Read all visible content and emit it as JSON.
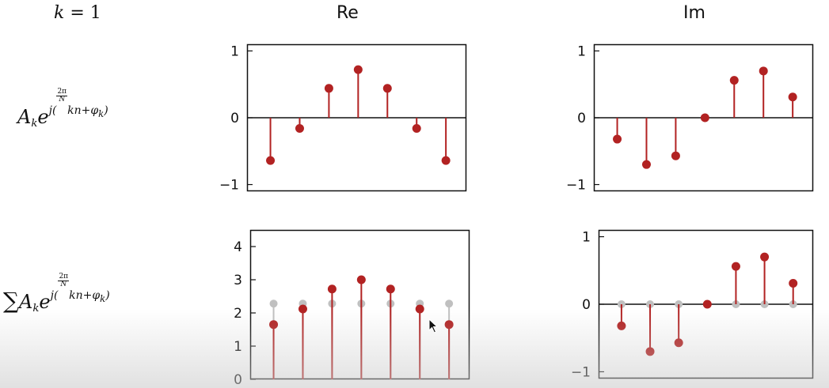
{
  "header": {
    "k_var": "k",
    "k_eq": " = 1",
    "col_re": "Re",
    "col_im": "Im"
  },
  "rows": {
    "term": {
      "A": "A",
      "sub_k": "k",
      "e": "e",
      "j": "j(",
      "frac_num": "2π",
      "frac_den": "N",
      "rest": "kn+φ",
      "sub_k2": "k",
      "close": ")"
    },
    "sum": {
      "sigma": "∑",
      "A": "A",
      "sub_k": "k",
      "e": "e",
      "j": "j(",
      "frac_num": "2π",
      "frac_den": "N",
      "rest": "kn+φ",
      "sub_k2": "k",
      "close": ")"
    }
  },
  "colors": {
    "stem": "#b22222",
    "ghost": "#c0c0c0",
    "axis": "#111111"
  },
  "chart_data": [
    {
      "id": "top-re",
      "type": "stem",
      "n": 7,
      "values": [
        -0.64,
        -0.16,
        0.44,
        0.72,
        0.44,
        -0.16,
        -0.64
      ],
      "ylim": [
        -1.1,
        1.1
      ],
      "yticks": [
        {
          "v": 1,
          "label": "1"
        },
        {
          "v": 0,
          "label": "0"
        },
        {
          "v": -1,
          "label": "−1"
        }
      ],
      "baseline": 0
    },
    {
      "id": "top-im",
      "type": "stem",
      "n": 7,
      "values": [
        -0.32,
        -0.7,
        -0.57,
        0.0,
        0.56,
        0.7,
        0.31
      ],
      "ylim": [
        -1.1,
        1.1
      ],
      "yticks": [
        {
          "v": 1,
          "label": "1"
        },
        {
          "v": 0,
          "label": "0"
        },
        {
          "v": -1,
          "label": "−1"
        }
      ],
      "baseline": 0
    },
    {
      "id": "bot-re",
      "type": "stem",
      "n": 7,
      "values": [
        1.65,
        2.12,
        2.72,
        3.0,
        2.72,
        2.12,
        1.65
      ],
      "ghost_values": [
        2.28,
        2.28,
        2.28,
        2.28,
        2.28,
        2.28,
        2.28
      ],
      "ylim": [
        0,
        4.5
      ],
      "yticks": [
        {
          "v": 4,
          "label": "4"
        },
        {
          "v": 3,
          "label": "3"
        },
        {
          "v": 2,
          "label": "2"
        },
        {
          "v": 1,
          "label": "1"
        },
        {
          "v": 0,
          "label": "0"
        }
      ],
      "baseline": 0
    },
    {
      "id": "bot-im",
      "type": "stem",
      "n": 7,
      "values": [
        -0.32,
        -0.7,
        -0.57,
        0.0,
        0.56,
        0.7,
        0.31
      ],
      "ghost_values": [
        0,
        0,
        0,
        0,
        0,
        0,
        0
      ],
      "ylim": [
        -1.1,
        1.1
      ],
      "yticks": [
        {
          "v": 1,
          "label": "1"
        },
        {
          "v": 0,
          "label": "0"
        },
        {
          "v": -1,
          "label": "−1"
        }
      ],
      "baseline": 0
    }
  ]
}
